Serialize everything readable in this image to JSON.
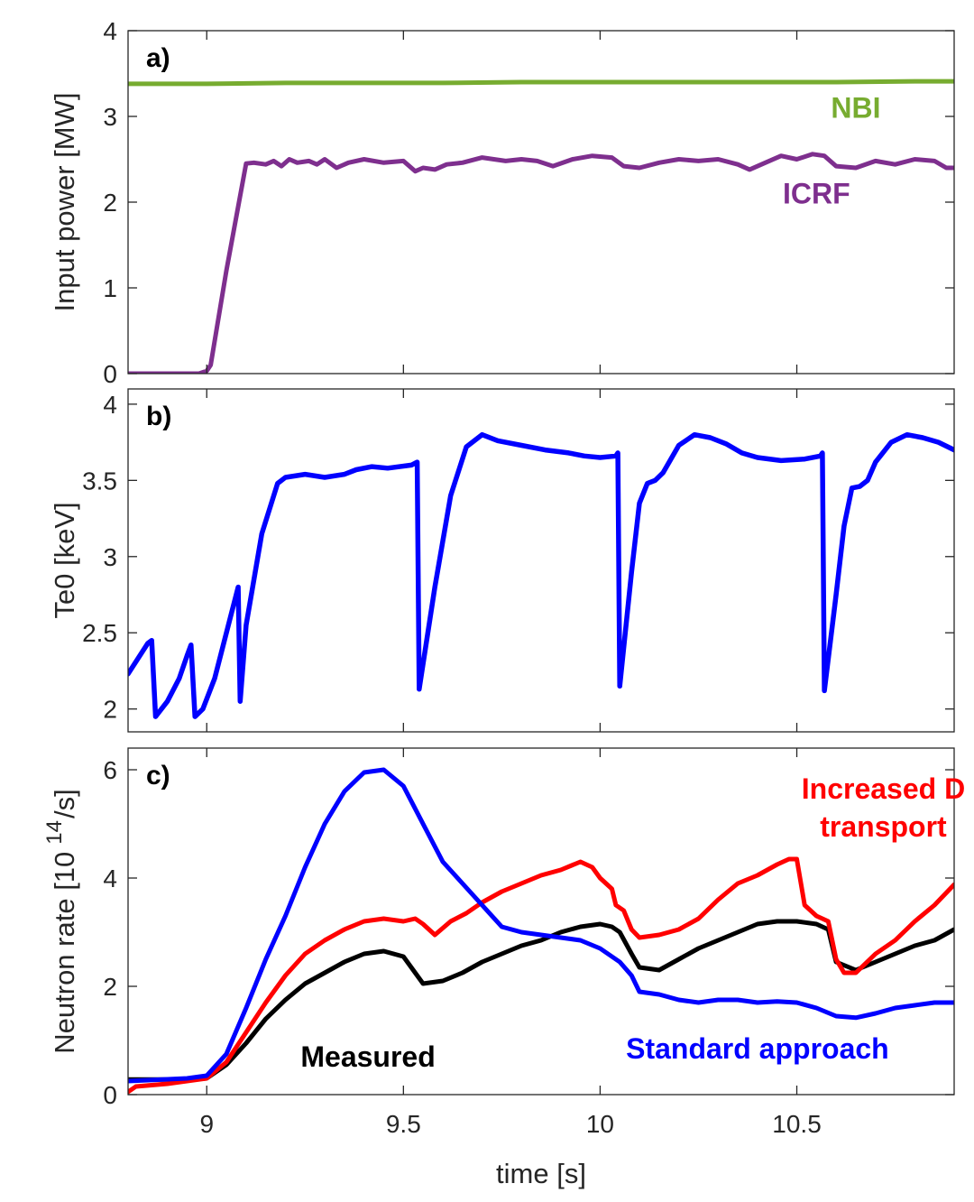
{
  "chart_data": [
    {
      "type": "line",
      "panel_label": "a)",
      "ylabel": "Input power [MW]",
      "xlim": [
        8.8,
        10.9
      ],
      "ylim": [
        0,
        4
      ],
      "yticks": [
        "0",
        "1",
        "2",
        "3",
        "4"
      ],
      "series": [
        {
          "name": "NBI",
          "color": "#77ac30",
          "x": [
            8.8,
            9.0,
            9.2,
            9.4,
            9.6,
            9.8,
            10.0,
            10.2,
            10.4,
            10.6,
            10.8,
            10.9
          ],
          "y": [
            3.38,
            3.38,
            3.39,
            3.39,
            3.39,
            3.4,
            3.4,
            3.4,
            3.4,
            3.4,
            3.41,
            3.41
          ]
        },
        {
          "name": "ICRF",
          "color": "#7e2f8e",
          "x": [
            8.8,
            8.98,
            9.0,
            9.01,
            9.05,
            9.1,
            9.12,
            9.15,
            9.17,
            9.19,
            9.21,
            9.23,
            9.26,
            9.28,
            9.3,
            9.33,
            9.36,
            9.4,
            9.45,
            9.5,
            9.53,
            9.55,
            9.58,
            9.61,
            9.65,
            9.7,
            9.76,
            9.8,
            9.84,
            9.88,
            9.93,
            9.98,
            10.03,
            10.06,
            10.1,
            10.15,
            10.2,
            10.25,
            10.3,
            10.35,
            10.38,
            10.42,
            10.46,
            10.5,
            10.54,
            10.57,
            10.6,
            10.65,
            10.7,
            10.75,
            10.8,
            10.85,
            10.88,
            10.9
          ],
          "y": [
            0,
            0,
            0.03,
            0.1,
            1.2,
            2.45,
            2.46,
            2.44,
            2.48,
            2.42,
            2.5,
            2.46,
            2.48,
            2.44,
            2.5,
            2.4,
            2.46,
            2.5,
            2.46,
            2.48,
            2.36,
            2.4,
            2.38,
            2.44,
            2.46,
            2.52,
            2.48,
            2.5,
            2.48,
            2.42,
            2.5,
            2.54,
            2.52,
            2.42,
            2.4,
            2.46,
            2.5,
            2.48,
            2.5,
            2.44,
            2.38,
            2.46,
            2.54,
            2.5,
            2.56,
            2.54,
            2.42,
            2.4,
            2.48,
            2.44,
            2.5,
            2.48,
            2.4,
            2.4
          ]
        }
      ],
      "annotations": [
        {
          "text": "NBI",
          "x": 10.65,
          "y": 3.1,
          "color": "#77ac30"
        },
        {
          "text": "ICRF",
          "x": 10.55,
          "y": 2.1,
          "color": "#7e2f8e"
        }
      ]
    },
    {
      "type": "line",
      "panel_label": "b)",
      "ylabel": "Te0 [keV]",
      "xlim": [
        8.8,
        10.9
      ],
      "ylim": [
        1.85,
        4.1
      ],
      "yticks": [
        "2",
        "2.5",
        "3",
        "3.5",
        "4"
      ],
      "series": [
        {
          "name": "",
          "color": "#0000ff",
          "x": [
            8.8,
            8.85,
            8.86,
            8.87,
            8.9,
            8.93,
            8.95,
            8.96,
            8.97,
            8.99,
            9.02,
            9.06,
            9.08,
            9.085,
            9.1,
            9.14,
            9.18,
            9.2,
            9.25,
            9.3,
            9.35,
            9.38,
            9.42,
            9.46,
            9.52,
            9.535,
            9.54,
            9.58,
            9.62,
            9.66,
            9.7,
            9.74,
            9.8,
            9.86,
            9.92,
            9.96,
            10.0,
            10.04,
            10.045,
            10.05,
            10.08,
            10.1,
            10.12,
            10.14,
            10.16,
            10.2,
            10.24,
            10.28,
            10.32,
            10.36,
            10.4,
            10.46,
            10.52,
            10.56,
            10.565,
            10.57,
            10.6,
            10.62,
            10.64,
            10.66,
            10.68,
            10.7,
            10.74,
            10.78,
            10.82,
            10.86,
            10.9
          ],
          "y": [
            2.23,
            2.43,
            2.45,
            1.95,
            2.05,
            2.2,
            2.35,
            2.42,
            1.95,
            2.0,
            2.2,
            2.6,
            2.8,
            2.05,
            2.55,
            3.15,
            3.48,
            3.52,
            3.54,
            3.52,
            3.54,
            3.57,
            3.59,
            3.58,
            3.6,
            3.62,
            2.13,
            2.8,
            3.4,
            3.72,
            3.8,
            3.76,
            3.73,
            3.7,
            3.68,
            3.66,
            3.65,
            3.66,
            3.68,
            2.15,
            2.9,
            3.35,
            3.48,
            3.5,
            3.55,
            3.73,
            3.8,
            3.78,
            3.74,
            3.68,
            3.65,
            3.63,
            3.64,
            3.66,
            3.68,
            2.12,
            2.75,
            3.2,
            3.45,
            3.46,
            3.5,
            3.62,
            3.75,
            3.8,
            3.78,
            3.75,
            3.7
          ]
        }
      ]
    },
    {
      "type": "line",
      "panel_label": "c)",
      "ylabel": "Neutron rate [10",
      "ylabel_exponent": "14",
      "ylabel_suffix": "/s]",
      "xlabel": "time [s]",
      "xlim": [
        8.8,
        10.9
      ],
      "ylim": [
        0,
        6.4
      ],
      "yticks": [
        "0",
        "2",
        "4",
        "6"
      ],
      "xticks": [
        "9",
        "9.5",
        "10",
        "10.5"
      ],
      "series": [
        {
          "name": "Measured",
          "color": "#000000",
          "x": [
            8.8,
            8.95,
            9.0,
            9.05,
            9.1,
            9.15,
            9.2,
            9.25,
            9.3,
            9.35,
            9.4,
            9.45,
            9.5,
            9.55,
            9.6,
            9.65,
            9.7,
            9.75,
            9.8,
            9.85,
            9.9,
            9.95,
            10.0,
            10.03,
            10.05,
            10.08,
            10.1,
            10.15,
            10.2,
            10.25,
            10.3,
            10.35,
            10.4,
            10.45,
            10.5,
            10.55,
            10.58,
            10.6,
            10.65,
            10.7,
            10.75,
            10.8,
            10.85,
            10.9
          ],
          "y": [
            0.28,
            0.28,
            0.3,
            0.55,
            0.95,
            1.4,
            1.75,
            2.05,
            2.25,
            2.45,
            2.6,
            2.65,
            2.55,
            2.05,
            2.1,
            2.25,
            2.45,
            2.6,
            2.75,
            2.85,
            3.0,
            3.1,
            3.15,
            3.1,
            3.0,
            2.6,
            2.35,
            2.3,
            2.5,
            2.7,
            2.85,
            3.0,
            3.15,
            3.2,
            3.2,
            3.15,
            3.05,
            2.45,
            2.3,
            2.45,
            2.6,
            2.75,
            2.85,
            3.05
          ]
        },
        {
          "name": "Increased D transport",
          "color": "#ff0000",
          "x": [
            8.8,
            8.82,
            8.9,
            9.0,
            9.05,
            9.1,
            9.15,
            9.2,
            9.25,
            9.3,
            9.35,
            9.4,
            9.45,
            9.5,
            9.53,
            9.55,
            9.58,
            9.62,
            9.66,
            9.7,
            9.75,
            9.8,
            9.85,
            9.9,
            9.95,
            9.98,
            10.0,
            10.03,
            10.04,
            10.06,
            10.08,
            10.1,
            10.15,
            10.2,
            10.25,
            10.3,
            10.35,
            10.4,
            10.45,
            10.48,
            10.5,
            10.52,
            10.55,
            10.58,
            10.6,
            10.62,
            10.65,
            10.7,
            10.75,
            10.8,
            10.85,
            10.9
          ],
          "y": [
            0.05,
            0.15,
            0.2,
            0.3,
            0.6,
            1.15,
            1.7,
            2.2,
            2.6,
            2.85,
            3.05,
            3.2,
            3.25,
            3.2,
            3.25,
            3.15,
            2.95,
            3.2,
            3.35,
            3.55,
            3.75,
            3.9,
            4.05,
            4.15,
            4.3,
            4.2,
            4.0,
            3.8,
            3.5,
            3.4,
            3.05,
            2.9,
            2.95,
            3.05,
            3.25,
            3.6,
            3.9,
            4.05,
            4.25,
            4.35,
            4.35,
            3.5,
            3.3,
            3.2,
            2.5,
            2.25,
            2.25,
            2.6,
            2.85,
            3.2,
            3.5,
            3.88
          ]
        },
        {
          "name": "Standard approach",
          "color": "#0000ff",
          "x": [
            8.8,
            8.95,
            9.0,
            9.05,
            9.1,
            9.15,
            9.2,
            9.25,
            9.3,
            9.35,
            9.4,
            9.45,
            9.5,
            9.55,
            9.6,
            9.65,
            9.7,
            9.75,
            9.8,
            9.85,
            9.9,
            9.95,
            10.0,
            10.05,
            10.08,
            10.1,
            10.15,
            10.2,
            10.25,
            10.3,
            10.35,
            10.4,
            10.45,
            10.5,
            10.55,
            10.6,
            10.65,
            10.7,
            10.75,
            10.8,
            10.85,
            10.9
          ],
          "y": [
            0.25,
            0.3,
            0.35,
            0.75,
            1.6,
            2.5,
            3.3,
            4.2,
            5.0,
            5.6,
            5.95,
            6.0,
            5.7,
            5.0,
            4.3,
            3.9,
            3.5,
            3.1,
            3.0,
            2.95,
            2.9,
            2.85,
            2.7,
            2.45,
            2.2,
            1.9,
            1.85,
            1.75,
            1.7,
            1.75,
            1.75,
            1.7,
            1.72,
            1.7,
            1.6,
            1.45,
            1.42,
            1.5,
            1.6,
            1.65,
            1.7,
            1.7
          ]
        }
      ],
      "annotations": [
        {
          "text": "Increased D",
          "x": 10.72,
          "y": 5.65,
          "color": "#ff0000"
        },
        {
          "text": "transport",
          "x": 10.72,
          "y": 4.95,
          "color": "#ff0000"
        },
        {
          "text": "Measured",
          "x": 9.41,
          "y": 0.7,
          "color": "#000000"
        },
        {
          "text": "Standard approach",
          "x": 10.4,
          "y": 0.85,
          "color": "#0000ff"
        }
      ]
    }
  ]
}
